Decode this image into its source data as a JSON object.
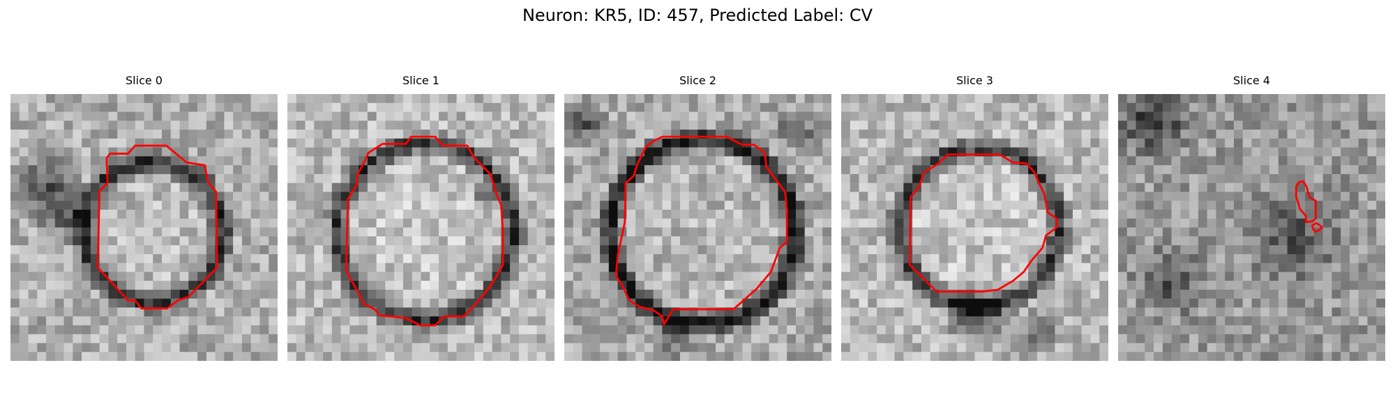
{
  "figure": {
    "title": "Neuron: KR5, ID: 457, Predicted Label: CV"
  },
  "panels": [
    {
      "title": "Slice 0"
    },
    {
      "title": "Slice 1"
    },
    {
      "title": "Slice 2"
    },
    {
      "title": "Slice 3"
    },
    {
      "title": "Slice 4"
    }
  ],
  "colors": {
    "contour": "#ff0000",
    "background": "#ffffff"
  }
}
